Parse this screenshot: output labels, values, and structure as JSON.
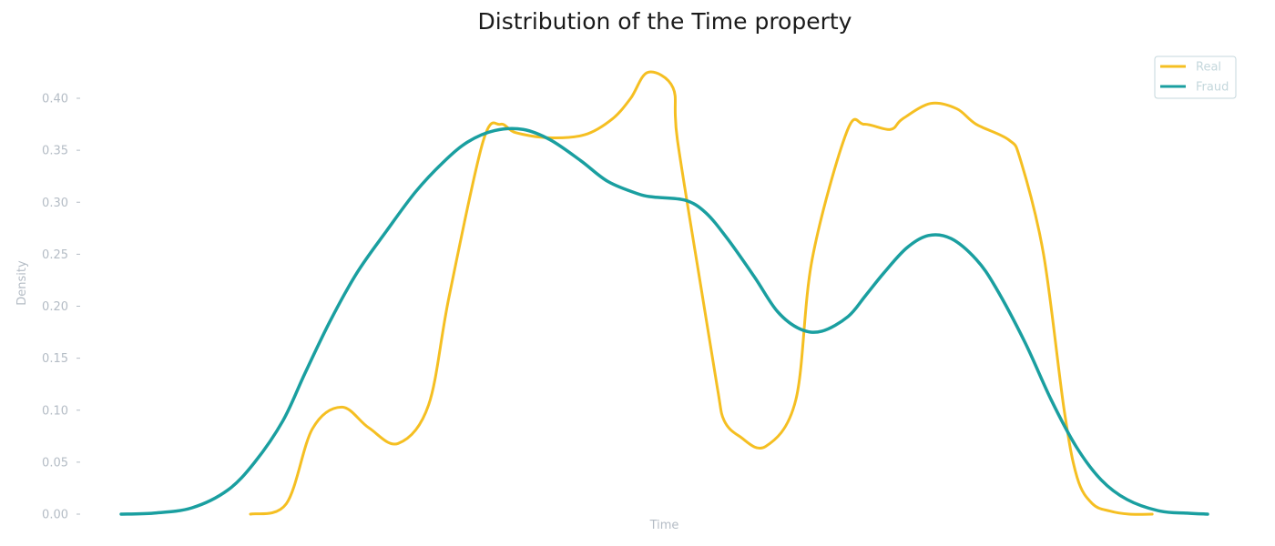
{
  "chart_data": {
    "type": "line",
    "title": "Distribution of the Time property",
    "xlabel": "Time",
    "ylabel": "Density",
    "ylim": [
      0,
      0.43
    ],
    "yticks": [
      0.0,
      0.05,
      0.1,
      0.15,
      0.2,
      0.25,
      0.3,
      0.35,
      0.4
    ],
    "ytick_labels": [
      "0.00",
      "0.05",
      "0.10",
      "0.15",
      "0.20",
      "0.25",
      "0.30",
      "0.35",
      "0.40"
    ],
    "xlim": [
      0,
      100
    ],
    "xticks_shown": false,
    "grid": false,
    "legend_position": "top-right",
    "series": [
      {
        "name": "Real",
        "color": "#f5bf22",
        "line_width": 3,
        "x": [
          11.9,
          15.2,
          17.6,
          20.3,
          22.8,
          25.5,
          28.3,
          30.2,
          33.3,
          34.9,
          36.3,
          39.4,
          42.7,
          45.2,
          46.9,
          48.5,
          50.8,
          51.2,
          53.5,
          54.9,
          55.5,
          56.9,
          59.3,
          62.1,
          63.6,
          66.8,
          68.4,
          70.8,
          71.9,
          74.5,
          76.9,
          78.7,
          81.7,
          82.8,
          84.9,
          86.8,
          88.0,
          89.4,
          91.0,
          92.8,
          94.9
        ],
        "y": [
          0.0,
          0.01,
          0.082,
          0.103,
          0.083,
          0.068,
          0.105,
          0.21,
          0.358,
          0.375,
          0.367,
          0.362,
          0.365,
          0.38,
          0.4,
          0.425,
          0.41,
          0.36,
          0.21,
          0.12,
          0.09,
          0.075,
          0.065,
          0.11,
          0.245,
          0.368,
          0.375,
          0.37,
          0.38,
          0.395,
          0.39,
          0.375,
          0.36,
          0.34,
          0.25,
          0.1,
          0.035,
          0.01,
          0.003,
          0.0,
          0.0
        ]
      },
      {
        "name": "Fraud",
        "color": "#1a9fa0",
        "line_width": 3.5,
        "x": [
          0.0,
          3.0,
          6.5,
          9.8,
          12.3,
          14.9,
          16.9,
          19.2,
          21.7,
          24.4,
          27.1,
          29.6,
          31.9,
          34.4,
          37.0,
          39.5,
          42.3,
          44.8,
          47.6,
          49.0,
          51.9,
          53.8,
          55.8,
          58.3,
          60.4,
          62.5,
          64.5,
          66.9,
          68.5,
          70.2,
          72.3,
          74.3,
          76.4,
          78.7,
          80.5,
          83.2,
          85.6,
          87.9,
          90.2,
          92.6,
          95.6,
          98.1,
          100.0
        ],
        "y": [
          0.0,
          0.001,
          0.006,
          0.023,
          0.05,
          0.09,
          0.135,
          0.185,
          0.232,
          0.272,
          0.31,
          0.338,
          0.358,
          0.369,
          0.37,
          0.36,
          0.34,
          0.32,
          0.308,
          0.305,
          0.302,
          0.29,
          0.265,
          0.228,
          0.195,
          0.178,
          0.176,
          0.19,
          0.21,
          0.232,
          0.256,
          0.268,
          0.265,
          0.245,
          0.218,
          0.165,
          0.11,
          0.065,
          0.033,
          0.014,
          0.003,
          0.001,
          0.0
        ]
      }
    ]
  }
}
